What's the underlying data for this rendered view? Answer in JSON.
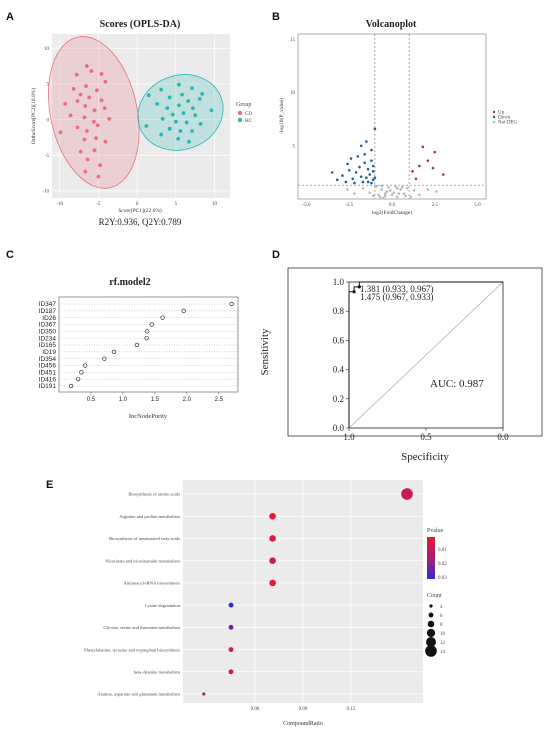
{
  "panel_labels": [
    "A",
    "B",
    "C",
    "D",
    "E"
  ],
  "panelA": {
    "footer": "R2Y:0.936, Q2Y:0.789",
    "legend_title": "Group",
    "legend_items": [
      "CD",
      "HC"
    ]
  },
  "panelD": {
    "annot1": "1.381 (0.933, 0.967)",
    "annot2": "1.475 (0.967, 0.933)"
  },
  "panelE": {
    "legend_pvalue_title": "Pvalue",
    "legend_count_title": "Count"
  },
  "colors": {
    "cd": "#e8717b",
    "hc": "#2bb7b4",
    "up": "#b0303a",
    "down": "#1f5f8f",
    "nodeg": "#b8b8b8",
    "bg": "#ebebeb"
  },
  "chart_data": [
    {
      "id": "A",
      "type": "scatter",
      "title": "Scores (OPLS-DA)",
      "xlabel": "Score[PC1](22.6%)",
      "ylabel": "OrthoScore[PC2](18.8%)",
      "xlim": [
        -11,
        12
      ],
      "ylim": [
        -11,
        12
      ],
      "xticks": [
        -10,
        -5,
        0,
        5,
        10
      ],
      "yticks": [
        -10,
        -5,
        0,
        5,
        10
      ],
      "legend_title": "Group",
      "legend_position": "right",
      "ellipses": [
        {
          "cx": -5.6,
          "cy": 1,
          "rx": 5.6,
          "ry": 10.8,
          "group": "CD"
        },
        {
          "cx": 5.6,
          "cy": 1,
          "rx": 5.6,
          "ry": 5.2,
          "group": "HC"
        }
      ],
      "series": [
        {
          "name": "CD",
          "points": [
            [
              -7.8,
              6.3
            ],
            [
              -6.5,
              7.5
            ],
            [
              -5.9,
              6.8
            ],
            [
              -4.6,
              6.4
            ],
            [
              -8.2,
              4.3
            ],
            [
              -6.6,
              4.7
            ],
            [
              -4.1,
              5.3
            ],
            [
              -5.2,
              4.1
            ],
            [
              -7.3,
              3.5
            ],
            [
              -6.2,
              3.1
            ],
            [
              -4.6,
              2.7
            ],
            [
              -9.3,
              2.2
            ],
            [
              -7.7,
              2.6
            ],
            [
              -6.7,
              1.9
            ],
            [
              -5.5,
              1.3
            ],
            [
              -4.2,
              1.6
            ],
            [
              -8.6,
              0.6
            ],
            [
              -6.8,
              0.3
            ],
            [
              -5.6,
              -0.3
            ],
            [
              -3.6,
              0.1
            ],
            [
              -7.7,
              -1.1
            ],
            [
              -6.5,
              -1.6
            ],
            [
              -5.1,
              -0.8
            ],
            [
              -9.9,
              -1.8
            ],
            [
              -6.8,
              -2.8
            ],
            [
              -5.3,
              -2.6
            ],
            [
              -4.1,
              -3.1
            ],
            [
              -7.3,
              -4.5
            ],
            [
              -6.4,
              -5.6
            ],
            [
              -5.5,
              -4.3
            ],
            [
              -4.8,
              -6.4
            ],
            [
              -6.7,
              -7.3
            ],
            [
              -5.0,
              -8.0
            ]
          ]
        },
        {
          "name": "HC",
          "points": [
            [
              3.1,
              4.2
            ],
            [
              5.4,
              4.9
            ],
            [
              7.1,
              4.4
            ],
            [
              8.4,
              3.6
            ],
            [
              1.5,
              3.4
            ],
            [
              4.2,
              3.1
            ],
            [
              5.8,
              3.5
            ],
            [
              6.6,
              2.6
            ],
            [
              8.1,
              2.9
            ],
            [
              2.6,
              2.2
            ],
            [
              3.9,
              1.6
            ],
            [
              5.4,
              2.0
            ],
            [
              7.2,
              1.6
            ],
            [
              9.6,
              1.3
            ],
            [
              4.6,
              0.7
            ],
            [
              6.0,
              0.9
            ],
            [
              7.5,
              0.6
            ],
            [
              3.3,
              0.1
            ],
            [
              5.0,
              -0.3
            ],
            [
              6.4,
              -0.4
            ],
            [
              8.2,
              -0.6
            ],
            [
              1.2,
              -0.9
            ],
            [
              4.2,
              -1.3
            ],
            [
              5.6,
              -1.6
            ],
            [
              7.1,
              -1.6
            ],
            [
              3.1,
              -2.1
            ],
            [
              5.3,
              -2.7
            ],
            [
              6.7,
              -3.1
            ]
          ]
        }
      ]
    },
    {
      "id": "B",
      "type": "scatter",
      "title": "Volcanoplot",
      "xlabel": "log2(FoldChange)",
      "ylabel": "-log10(P_value)",
      "xlim": [
        -5.5,
        5.5
      ],
      "ylim": [
        0,
        15.5
      ],
      "xticks": [
        -5.0,
        -2.5,
        0.0,
        2.5,
        5.0
      ],
      "yticks": [
        5,
        10,
        15
      ],
      "vlines": [
        -1,
        1
      ],
      "hline": 1.3,
      "legend_position": "right",
      "series": [
        {
          "name": "Up",
          "points": [
            [
              1.2,
              2.6
            ],
            [
              1.6,
              3.1
            ],
            [
              2.1,
              3.6
            ],
            [
              2.5,
              4.4
            ],
            [
              1.8,
              4.9
            ],
            [
              3.0,
              2.3
            ],
            [
              2.4,
              2.9
            ],
            [
              1.4,
              1.9
            ]
          ]
        },
        {
          "name": "Down",
          "points": [
            [
              -2.6,
              3.3
            ],
            [
              -2.1,
              2.5
            ],
            [
              -1.6,
              4.2
            ],
            [
              -1.2,
              3.6
            ],
            [
              -2.3,
              1.9
            ],
            [
              -1.8,
              2.1
            ],
            [
              -1.4,
              2.8
            ],
            [
              -1.1,
              1.8
            ],
            [
              -2.9,
              2.2
            ],
            [
              -1.9,
              3.0
            ],
            [
              -1.5,
              5.4
            ],
            [
              -1.0,
              6.6
            ],
            [
              -1.2,
              4.6
            ],
            [
              -2.5,
              2.7
            ],
            [
              -1.7,
              1.6
            ],
            [
              -1.3,
              2.3
            ],
            [
              -1.1,
              3.1
            ],
            [
              -2.0,
              4.0
            ],
            [
              -1.6,
              3.4
            ],
            [
              -3.2,
              1.8
            ],
            [
              -2.2,
              1.5
            ],
            [
              -1.4,
              1.6
            ],
            [
              -1.0,
              2.0
            ],
            [
              -2.7,
              1.6
            ],
            [
              -1.8,
              5.0
            ],
            [
              -1.5,
              2.0
            ],
            [
              -1.2,
              1.5
            ],
            [
              -2.4,
              3.8
            ],
            [
              -3.5,
              2.5
            ],
            [
              -1.1,
              2.6
            ]
          ]
        },
        {
          "name": "Not DEG",
          "points": [
            [
              -0.8,
              0.4
            ],
            [
              -0.6,
              0.9
            ],
            [
              -0.4,
              0.3
            ],
            [
              -0.2,
              1.1
            ],
            [
              0.1,
              0.6
            ],
            [
              0.3,
              0.2
            ],
            [
              0.5,
              0.9
            ],
            [
              0.7,
              0.5
            ],
            [
              -0.9,
              1.2
            ],
            [
              -0.5,
              0.1
            ],
            [
              0.2,
              1.2
            ],
            [
              0.6,
              1.1
            ],
            [
              -0.3,
              0.7
            ],
            [
              0.8,
              0.3
            ],
            [
              -0.7,
              0.2
            ],
            [
              0.0,
              0.4
            ],
            [
              0.4,
              0.5
            ],
            [
              -0.1,
              0.8
            ],
            [
              0.9,
              1.0
            ],
            [
              -0.6,
              1.25
            ],
            [
              1.3,
              0.8
            ],
            [
              1.6,
              0.4
            ],
            [
              2.1,
              0.9
            ],
            [
              -1.3,
              0.6
            ],
            [
              -1.7,
              1.0
            ],
            [
              -2.2,
              0.5
            ],
            [
              -1.1,
              0.3
            ],
            [
              1.1,
              0.2
            ],
            [
              2.6,
              0.7
            ],
            [
              -2.6,
              0.9
            ],
            [
              0.3,
              1.0
            ],
            [
              -0.4,
              0.5
            ]
          ]
        }
      ]
    },
    {
      "id": "C",
      "type": "scatter",
      "title": "rf.model2",
      "xlabel": "IncNodePurity",
      "xlim": [
        0,
        2.8
      ],
      "xticks": [
        0.5,
        1.0,
        1.5,
        2.0,
        2.5
      ],
      "categories": [
        "ID347",
        "ID187",
        "ID26",
        "ID367",
        "ID350",
        "ID234",
        "ID165",
        "ID19",
        "ID354",
        "ID456",
        "ID451",
        "ID416",
        "ID191"
      ],
      "values": [
        2.7,
        1.95,
        1.62,
        1.45,
        1.38,
        1.37,
        1.22,
        0.86,
        0.71,
        0.41,
        0.35,
        0.3,
        0.19
      ]
    },
    {
      "id": "D",
      "type": "line",
      "title": "",
      "xlabel": "Specificity",
      "ylabel": "Sensitivity",
      "xlim": [
        1.0,
        0.0
      ],
      "ylim": [
        0.0,
        1.0
      ],
      "xticks": [
        "1.0",
        "0.5",
        "0.0"
      ],
      "yticks": [
        "0.0",
        "0.2",
        "0.4",
        "0.6",
        "0.8",
        "1.0"
      ],
      "auc_label": "AUC: 0.987",
      "series": [
        {
          "name": "ROC",
          "x": [
            1.0,
            1.0,
            0.967,
            0.967,
            0.933,
            0.933,
            0.0
          ],
          "y": [
            0.0,
            0.933,
            0.933,
            0.967,
            0.967,
            1.0,
            1.0
          ]
        }
      ],
      "points": [
        {
          "x": 0.967,
          "y": 0.933
        },
        {
          "x": 0.933,
          "y": 0.967
        }
      ]
    },
    {
      "id": "E",
      "type": "scatter",
      "title": "",
      "xlabel": "CompoundRatio",
      "xlim": [
        0.015,
        0.165
      ],
      "xticks": [
        0.06,
        0.09,
        0.12
      ],
      "categories": [
        "Biosynthesis of amino acids",
        "Arginine and proline metabolism",
        "Biosynthesis of unsaturated fatty acids",
        "Nicotinate and nicotinamide metabolism",
        "Aminoacyl-tRNA biosynthesis",
        "Lysine degradation",
        "Glycine, serine and threonine metabolism",
        "Phenylalanine, tyrosine and tryptophan biosynthesis",
        "beta-Alanine metabolism",
        "Alanine, aspartate and glutamate metabolism"
      ],
      "x": [
        0.155,
        0.071,
        0.071,
        0.071,
        0.071,
        0.045,
        0.045,
        0.045,
        0.045,
        0.028
      ],
      "count": [
        14,
        8,
        8,
        8,
        8,
        6,
        6,
        6,
        6,
        4
      ],
      "pvalue": [
        0.019,
        0.016,
        0.017,
        0.019,
        0.016,
        0.034,
        0.028,
        0.019,
        0.018,
        0.021
      ],
      "pvalue_legend_ticks": [
        "0.01",
        "0.02",
        "0.03"
      ],
      "count_legend": [
        "4",
        "6",
        "8",
        "10",
        "12",
        "14"
      ]
    }
  ]
}
